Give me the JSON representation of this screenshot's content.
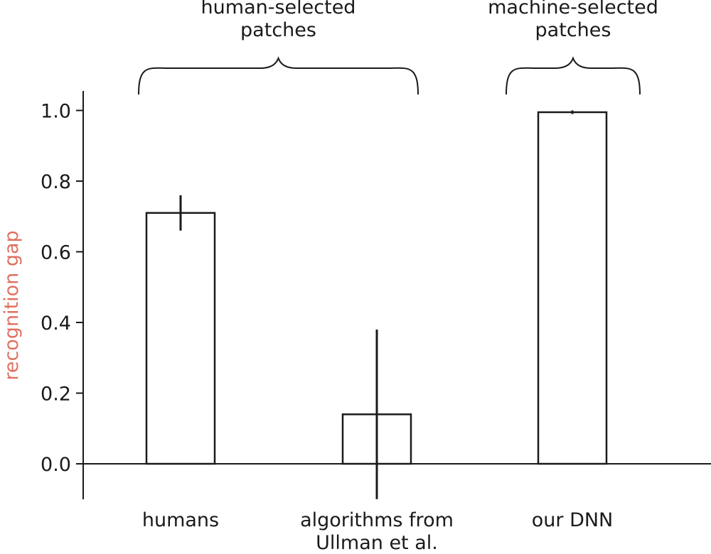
{
  "chart_data": {
    "type": "bar",
    "categories": [
      [
        "humans"
      ],
      [
        "algorithms from",
        "Ullman et al."
      ],
      [
        "our DNN"
      ]
    ],
    "values": [
      0.71,
      0.14,
      0.995
    ],
    "errors": [
      {
        "low": 0.66,
        "high": 0.76
      },
      {
        "low": -0.1,
        "high": 0.38
      },
      {
        "low": 0.99,
        "high": 1.0
      }
    ],
    "ylabel": "recognition gap",
    "ylim": [
      -0.1,
      1.06
    ],
    "yticks": [
      "0.0",
      "0.2",
      "0.4",
      "0.6",
      "0.8",
      "1.0"
    ],
    "ytick_values": [
      0.0,
      0.2,
      0.4,
      0.6,
      0.8,
      1.0
    ],
    "groups": [
      {
        "label": [
          "human-selected",
          "patches"
        ],
        "covers": [
          0,
          1
        ]
      },
      {
        "label": [
          "machine-selected",
          "patches"
        ],
        "covers": [
          2,
          2
        ]
      }
    ],
    "colors": {
      "bar_fill": "#ffffff",
      "bar_edge": "#1a1a1a",
      "ylabel": "#e07060"
    }
  }
}
